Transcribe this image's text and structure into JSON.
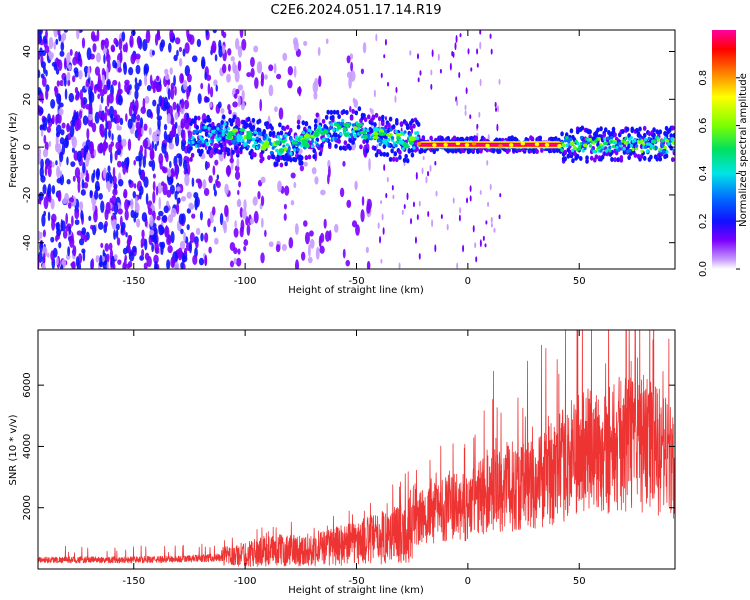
{
  "title": "C2E6.2024.051.17.14.R19",
  "chart_data": [
    {
      "type": "heatmap",
      "xlabel": "Height of straight line (km)",
      "ylabel": "Frequency (Hz)",
      "xlim": [
        -193,
        93
      ],
      "ylim": [
        -51,
        49
      ],
      "xticks": [
        -150,
        -100,
        -50,
        0,
        50
      ],
      "yticks": [
        -40,
        -20,
        0,
        20,
        40
      ],
      "grid": false,
      "signal_trace": {
        "description_free": true,
        "frequency_hz": 1,
        "x_start": -125,
        "x_end": 93,
        "drift_x_end": -22,
        "stable_from_x": -22,
        "max_amplitude_window": [
          -22,
          42
        ]
      },
      "colorbar": {
        "label": "Normalized spectral amplitude",
        "range": [
          0,
          1
        ],
        "ticks": [
          "0.0",
          "0.2",
          "0.4",
          "0.6",
          "0.8"
        ],
        "tick_values": [
          0.0,
          0.2,
          0.4,
          0.6,
          0.8
        ],
        "colors": [
          "#ffffff",
          "#c79bff",
          "#7a00ff",
          "#1010ff",
          "#0070ff",
          "#00e5e5",
          "#00e060",
          "#7cff00",
          "#ffff00",
          "#ff8000",
          "#ff0000",
          "#ff00a0"
        ]
      }
    },
    {
      "type": "line",
      "xlabel": "Height of straight line (km)",
      "ylabel": "SNR (10 * v/v)",
      "xlim": [
        -193,
        93
      ],
      "ylim": [
        0,
        7800
      ],
      "xticks": [
        -150,
        -100,
        -50,
        0,
        50
      ],
      "yticks": [
        2000,
        4000,
        6000
      ],
      "color": "#ee3333",
      "series": [
        {
          "name": "SNR",
          "x": [
            -193,
            -170,
            -150,
            -130,
            -110,
            -100,
            -90,
            -80,
            -70,
            -60,
            -50,
            -40,
            -30,
            -20,
            -10,
            0,
            10,
            20,
            30,
            40,
            50,
            60,
            70,
            80,
            90,
            93
          ],
          "y": [
            300,
            300,
            300,
            320,
            380,
            480,
            600,
            620,
            620,
            750,
            850,
            1000,
            1200,
            1700,
            2000,
            2000,
            2600,
            2700,
            2800,
            3200,
            3800,
            3900,
            4100,
            4100,
            3600,
            3500
          ]
        }
      ]
    }
  ]
}
